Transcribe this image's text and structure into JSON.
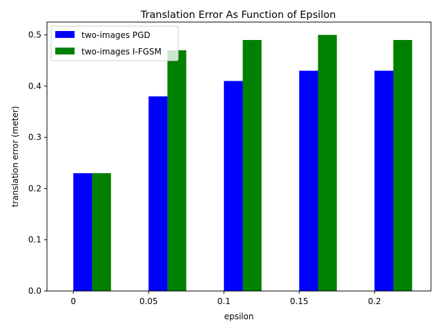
{
  "chart_data": {
    "type": "bar",
    "title": "Translation Error As Function of Epsilon",
    "xlabel": "epsilon",
    "ylabel": "translation error (meter)",
    "categories": [
      "0",
      "0.05",
      "0.1",
      "0.15",
      "0.2"
    ],
    "series": [
      {
        "name": "two-images PGD",
        "color": "#0000ff",
        "values": [
          0.23,
          0.38,
          0.41,
          0.43,
          0.43
        ]
      },
      {
        "name": "two-images I-FGSM",
        "color": "#008000",
        "values": [
          0.23,
          0.47,
          0.49,
          0.5,
          0.49
        ]
      }
    ],
    "ylim": [
      0,
      0.525
    ],
    "yticks": [
      0,
      0.1,
      0.2,
      0.3,
      0.4,
      0.5
    ],
    "ytick_labels": [
      "0.0",
      "0.1",
      "0.2",
      "0.3",
      "0.4",
      "0.5"
    ],
    "grid": false,
    "legend_position": "top-left"
  }
}
